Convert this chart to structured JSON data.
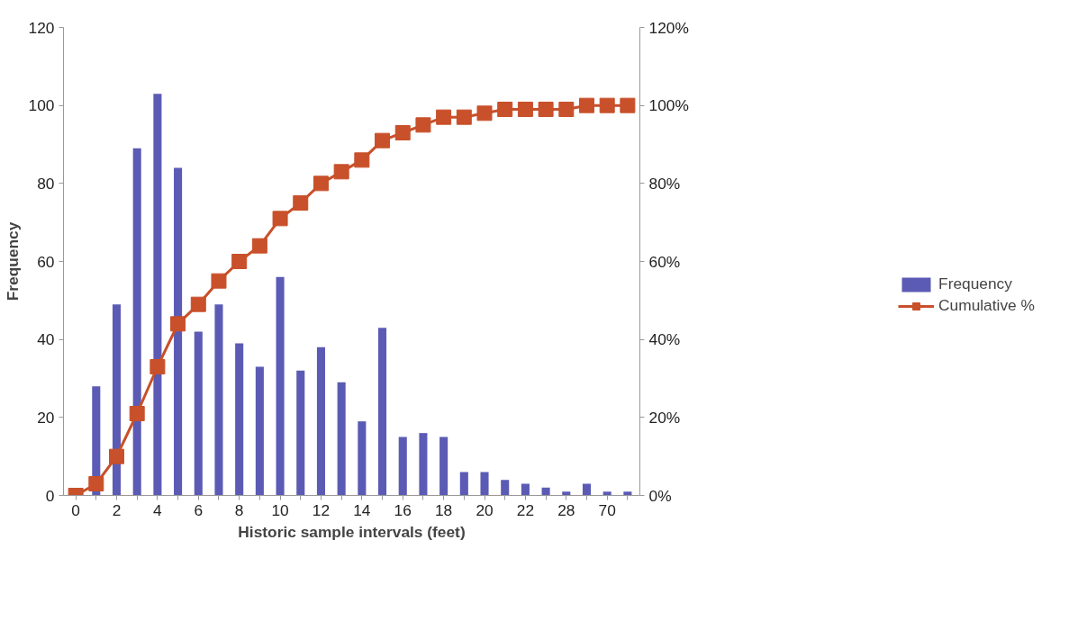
{
  "chart_data": {
    "type": "bar",
    "xlabel": "Historic sample intervals (feet)",
    "ylabel": "Frequency",
    "categories": [
      "0",
      null,
      "2",
      null,
      "4",
      null,
      "6",
      null,
      "8",
      null,
      "10",
      null,
      "12",
      null,
      "14",
      null,
      "16",
      null,
      "18",
      null,
      "20",
      null,
      "22",
      null,
      "28",
      null,
      "70",
      null
    ],
    "series": [
      {
        "name": "Frequency",
        "color": "#5b5bb5",
        "values": [
          0,
          28,
          49,
          89,
          103,
          84,
          42,
          49,
          39,
          33,
          56,
          32,
          38,
          29,
          19,
          43,
          15,
          16,
          15,
          6,
          6,
          4,
          3,
          2,
          1,
          3,
          1,
          1
        ]
      },
      {
        "name": "Cumulative %",
        "type": "line",
        "axis": "y2",
        "color": "#c8502a",
        "marker": "square",
        "values": [
          0,
          3,
          10,
          21,
          33,
          44,
          49,
          55,
          60,
          64,
          71,
          75,
          80,
          83,
          86,
          91,
          93,
          95,
          97,
          97,
          98,
          99,
          99,
          99,
          99,
          100,
          100,
          100
        ]
      }
    ],
    "ylim": [
      0,
      120
    ],
    "yticks": [
      0,
      20,
      40,
      60,
      80,
      100,
      120
    ],
    "y2lim": [
      0,
      120
    ],
    "y2ticks": [
      {
        "value": 0,
        "label": "0%"
      },
      {
        "value": 20,
        "label": "20%"
      },
      {
        "value": 40,
        "label": "40%"
      },
      {
        "value": 60,
        "label": "60%"
      },
      {
        "value": 80,
        "label": "80%"
      },
      {
        "value": 100,
        "label": "100%"
      },
      {
        "value": 120,
        "label": "120%"
      }
    ],
    "grid": false,
    "legend": "right"
  }
}
